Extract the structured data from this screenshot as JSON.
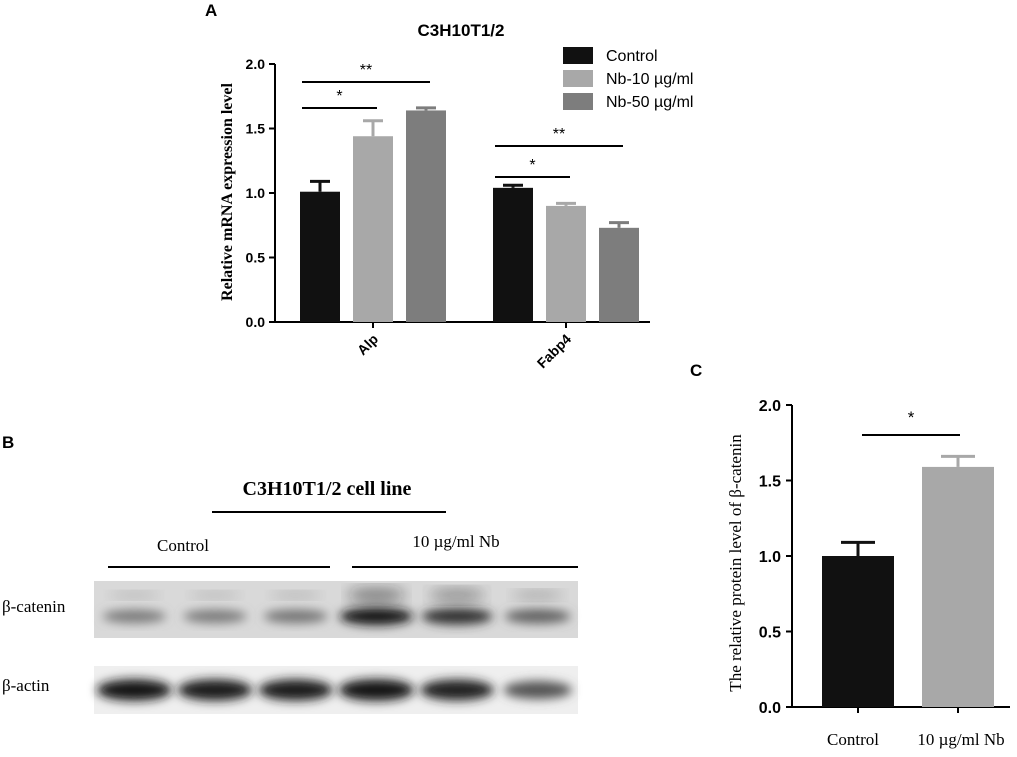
{
  "panels": {
    "a": {
      "letter": "A"
    },
    "b": {
      "letter": "B"
    },
    "c": {
      "letter": "C"
    }
  },
  "chart_data": [
    {
      "panel": "A",
      "type": "bar",
      "title": "C3H10T1/2",
      "xlabel": "",
      "ylabel": "Relative mRNA expression level",
      "ylim": [
        0,
        2.0
      ],
      "yticks": [
        "0.0",
        "0.5",
        "1.0",
        "1.5",
        "2.0"
      ],
      "categories": [
        "Alp",
        "Fabp4"
      ],
      "series": [
        {
          "name": "Control",
          "color": "#111111",
          "values": [
            1.01,
            1.04
          ],
          "errors": [
            0.08,
            0.02
          ]
        },
        {
          "name": "Nb-10 µg/ml",
          "color": "#a8a8a8",
          "values": [
            1.44,
            0.9
          ],
          "errors": [
            0.12,
            0.02
          ]
        },
        {
          "name": "Nb-50 µg/ml",
          "color": "#7d7d7d",
          "values": [
            1.64,
            0.73
          ],
          "errors": [
            0.02,
            0.04
          ]
        }
      ],
      "significance": [
        {
          "category": 0,
          "from_series": 0,
          "to_series": 1,
          "label": "*"
        },
        {
          "category": 0,
          "from_series": 0,
          "to_series": 2,
          "label": "**"
        },
        {
          "category": 1,
          "from_series": 0,
          "to_series": 1,
          "label": "*"
        },
        {
          "category": 1,
          "from_series": 0,
          "to_series": 2,
          "label": "**"
        }
      ],
      "legend_position": "top-right",
      "grid": false
    },
    {
      "panel": "C",
      "type": "bar",
      "title": "",
      "xlabel": "",
      "ylabel": "The relative protein level of β-catenin",
      "ylim": [
        0,
        2.0
      ],
      "yticks": [
        "0.0",
        "0.5",
        "1.0",
        "1.5",
        "2.0"
      ],
      "categories": [
        "Control",
        "10 µg/ml Nb"
      ],
      "series": [
        {
          "values": [
            1.0,
            1.59
          ],
          "errors": [
            0.09,
            0.07
          ],
          "colors": [
            "#111111",
            "#a8a8a8"
          ]
        }
      ],
      "significance": [
        {
          "from": 0,
          "to": 1,
          "label": "*"
        }
      ],
      "grid": false
    }
  ],
  "western_blot": {
    "title": "C3H10T1/2 cell line",
    "groups": [
      {
        "label": "Control"
      },
      {
        "label": "10 µg/ml Nb"
      }
    ],
    "rows": [
      {
        "label": "β-catenin",
        "intensities": [
          0.42,
          0.42,
          0.45,
          0.95,
          0.82,
          0.55
        ]
      },
      {
        "label": "β-actin",
        "intensities": [
          0.95,
          0.93,
          0.92,
          0.98,
          0.9,
          0.62
        ]
      }
    ]
  }
}
